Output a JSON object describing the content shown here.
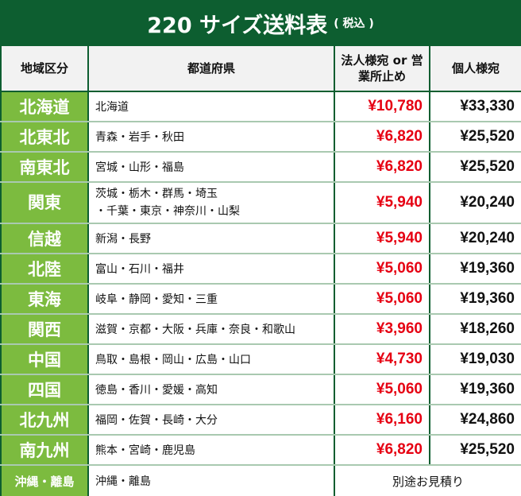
{
  "title": {
    "main": "220 サイズ送料表",
    "sub": "( 税込 )"
  },
  "headers": {
    "region": "地域区分",
    "prefectures": "都道府県",
    "corporate": "法人様宛 or 営業所止め",
    "personal": "個人様宛"
  },
  "colors": {
    "title_bg": "#0d5e30",
    "region_bg": "#7cbb3f",
    "corporate_price": "#e60012"
  },
  "rows": [
    {
      "region": "北海道",
      "prefectures": "北海道",
      "corporate": "¥10,780",
      "personal": "¥33,330"
    },
    {
      "region": "北東北",
      "prefectures": "青森・岩手・秋田",
      "corporate": "¥6,820",
      "personal": "¥25,520"
    },
    {
      "region": "南東北",
      "prefectures": "宮城・山形・福島",
      "corporate": "¥6,820",
      "personal": "¥25,520"
    },
    {
      "region": "関東",
      "prefectures": "茨城・栃木・群馬・埼玉",
      "prefectures2": "・千葉・東京・神奈川・山梨",
      "corporate": "¥5,940",
      "personal": "¥20,240"
    },
    {
      "region": "信越",
      "prefectures": "新潟・長野",
      "corporate": "¥5,940",
      "personal": "¥20,240"
    },
    {
      "region": "北陸",
      "prefectures": "富山・石川・福井",
      "corporate": "¥5,060",
      "personal": "¥19,360"
    },
    {
      "region": "東海",
      "prefectures": "岐阜・静岡・愛知・三重",
      "corporate": "¥5,060",
      "personal": "¥19,360"
    },
    {
      "region": "関西",
      "prefectures": "滋賀・京都・大阪・兵庫・奈良・和歌山",
      "corporate": "¥3,960",
      "personal": "¥18,260"
    },
    {
      "region": "中国",
      "prefectures": "鳥取・島根・岡山・広島・山口",
      "corporate": "¥4,730",
      "personal": "¥19,030"
    },
    {
      "region": "四国",
      "prefectures": "徳島・香川・愛媛・高知",
      "corporate": "¥5,060",
      "personal": "¥19,360"
    },
    {
      "region": "北九州",
      "prefectures": "福岡・佐賀・長崎・大分",
      "corporate": "¥6,160",
      "personal": "¥24,860"
    },
    {
      "region": "南九州",
      "prefectures": "熊本・宮崎・鹿児島",
      "corporate": "¥6,820",
      "personal": "¥25,520"
    }
  ],
  "okinawa": {
    "region": "沖縄・離島",
    "prefectures": "沖縄・離島",
    "note": "別途お見積り"
  }
}
